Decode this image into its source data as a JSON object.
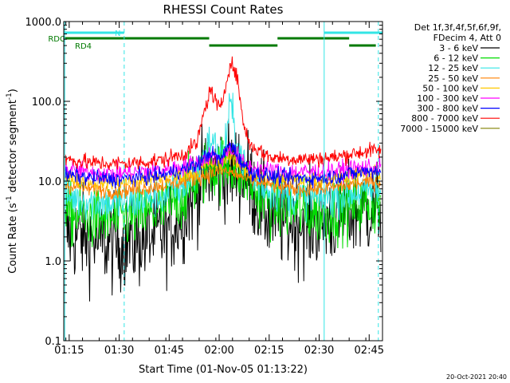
{
  "chart_data": {
    "type": "line",
    "title": "RHESSI Count Rates",
    "xlabel": "Start Time (01-Nov-05 01:13:22)",
    "ylabel_main": "Count Rate (s",
    "ylabel_sup": "-1",
    "ylabel_tail": " detector segment",
    "ylabel_sup2": "-1",
    "ylabel_close": ")",
    "y_scale": "log",
    "ylim": [
      0.1,
      1000
    ],
    "xlim": [
      "01:13:22",
      "02:49:00"
    ],
    "x_ticks": [
      "01:15",
      "01:30",
      "01:45",
      "02:00",
      "02:15",
      "02:30",
      "02:45"
    ],
    "y_ticks": [
      {
        "v": 0.1,
        "label": "0.1"
      },
      {
        "v": 1,
        "label": "1.0"
      },
      {
        "v": 10,
        "label": "10.0"
      },
      {
        "v": 100,
        "label": "100.0"
      },
      {
        "v": 1000,
        "label": "1000.0"
      }
    ],
    "legend_header": [
      "Det 1f,3f,4f,5f,6f,9f,",
      "FDecim 4, Att 0"
    ],
    "footer_date": "20-Oct-2021 20:40",
    "flags": [
      {
        "label": "N",
        "color": "#33e5e5",
        "segments": [
          [
            "01:13:22",
            "01:31:30"
          ],
          [
            "02:31:30",
            "02:49:00"
          ]
        ]
      },
      {
        "label": "RDC",
        "color": "#007a00",
        "segments": [
          [
            "01:13:22",
            "01:57:00"
          ],
          [
            "02:17:30",
            "02:39:00"
          ]
        ]
      },
      {
        "label": "RD4",
        "color": "#007a00",
        "segments": [
          [
            "01:57:00",
            "02:17:30"
          ],
          [
            "02:39:00",
            "02:47:00"
          ]
        ]
      }
    ],
    "vlines_solid": [
      "01:13:40",
      "02:31:30"
    ],
    "vlines_dashed": [
      "01:31:30",
      "02:47:45"
    ],
    "series": [
      {
        "name": "3 - 6 keV",
        "color": "#000000",
        "base": [
          [
            0,
            2.2
          ],
          [
            6,
            2.0
          ],
          [
            15,
            1.6
          ],
          [
            22,
            1.8
          ],
          [
            30,
            2.2
          ],
          [
            36,
            4.0
          ],
          [
            40,
            8.0
          ],
          [
            44,
            13.0
          ],
          [
            48,
            14.0
          ],
          [
            52,
            13.5
          ],
          [
            55,
            12.0
          ],
          [
            58,
            6.0
          ],
          [
            62,
            3.5
          ],
          [
            68,
            3.0
          ],
          [
            76,
            3.0
          ],
          [
            82,
            3.5
          ],
          [
            86,
            4.0
          ],
          [
            92,
            4.5
          ]
        ],
        "noise": 0.3
      },
      {
        "name": "6 - 12 keV",
        "color": "#00dd00",
        "base": [
          [
            0,
            4.0
          ],
          [
            6,
            3.5
          ],
          [
            15,
            3.3
          ],
          [
            22,
            3.6
          ],
          [
            30,
            4.4
          ],
          [
            36,
            6.5
          ],
          [
            40,
            10.0
          ],
          [
            44,
            16.0
          ],
          [
            46,
            13.5
          ],
          [
            48,
            15.0
          ],
          [
            50,
            17.0
          ],
          [
            52,
            14.0
          ],
          [
            55,
            11.0
          ],
          [
            58,
            7.0
          ],
          [
            62,
            5.0
          ],
          [
            68,
            4.4
          ],
          [
            76,
            4.0
          ],
          [
            82,
            4.3
          ],
          [
            86,
            4.8
          ],
          [
            92,
            5.2
          ]
        ],
        "noise": 0.2
      },
      {
        "name": "12 - 25 keV",
        "color": "#33e5e5",
        "base": [
          [
            0,
            6.5
          ],
          [
            8,
            5.5
          ],
          [
            15,
            5.2
          ],
          [
            22,
            5.5
          ],
          [
            30,
            6.5
          ],
          [
            36,
            9.0
          ],
          [
            40,
            12.0
          ],
          [
            44,
            33.0
          ],
          [
            46,
            25.0
          ],
          [
            48,
            21.0
          ],
          [
            50,
            95.0
          ],
          [
            52,
            30.0
          ],
          [
            55,
            12.0
          ],
          [
            58,
            9.5
          ],
          [
            62,
            7.5
          ],
          [
            68,
            6.5
          ],
          [
            76,
            6.0
          ],
          [
            82,
            6.5
          ],
          [
            86,
            7.0
          ],
          [
            92,
            7.5
          ]
        ],
        "noise": 0.12
      },
      {
        "name": "25 - 50 keV",
        "color": "#ff8000",
        "base": [
          [
            0,
            9.0
          ],
          [
            8,
            8.0
          ],
          [
            15,
            7.5
          ],
          [
            22,
            8.0
          ],
          [
            30,
            9.0
          ],
          [
            36,
            10.0
          ],
          [
            40,
            11.0
          ],
          [
            44,
            12.5
          ],
          [
            48,
            13.5
          ],
          [
            51,
            12.5
          ],
          [
            54,
            11.0
          ],
          [
            58,
            10.0
          ],
          [
            62,
            9.0
          ],
          [
            68,
            8.0
          ],
          [
            76,
            8.0
          ],
          [
            82,
            8.5
          ],
          [
            86,
            9.0
          ],
          [
            92,
            10.0
          ]
        ],
        "noise": 0.05
      },
      {
        "name": "50 - 100 keV",
        "color": "#ffc800",
        "base": [
          [
            0,
            11.0
          ],
          [
            8,
            10.0
          ],
          [
            15,
            9.5
          ],
          [
            22,
            10.0
          ],
          [
            30,
            11.0
          ],
          [
            36,
            12.0
          ],
          [
            40,
            13.0
          ],
          [
            44,
            17.0
          ],
          [
            47,
            15.0
          ],
          [
            50,
            22.0
          ],
          [
            53,
            15.0
          ],
          [
            56,
            12.5
          ],
          [
            62,
            11.0
          ],
          [
            68,
            10.5
          ],
          [
            76,
            10.5
          ],
          [
            82,
            11.0
          ],
          [
            86,
            12.0
          ],
          [
            92,
            12.5
          ]
        ],
        "noise": 0.05
      },
      {
        "name": "100 - 300 keV",
        "color": "#ff00ff",
        "base": [
          [
            0,
            14.0
          ],
          [
            8,
            13.0
          ],
          [
            15,
            12.5
          ],
          [
            22,
            13.0
          ],
          [
            30,
            14.0
          ],
          [
            36,
            15.5
          ],
          [
            40,
            17.0
          ],
          [
            44,
            21.0
          ],
          [
            47,
            18.0
          ],
          [
            50,
            27.0
          ],
          [
            53,
            18.0
          ],
          [
            56,
            15.0
          ],
          [
            62,
            13.5
          ],
          [
            68,
            13.0
          ],
          [
            76,
            13.0
          ],
          [
            82,
            13.5
          ],
          [
            86,
            14.5
          ],
          [
            92,
            15.0
          ]
        ],
        "noise": 0.06
      },
      {
        "name": "300 - 800 keV",
        "color": "#0000ff",
        "base": [
          [
            0,
            12.0
          ],
          [
            8,
            11.0
          ],
          [
            15,
            10.5
          ],
          [
            22,
            11.0
          ],
          [
            30,
            12.0
          ],
          [
            36,
            14.0
          ],
          [
            40,
            16.0
          ],
          [
            44,
            23.0
          ],
          [
            47,
            18.0
          ],
          [
            50,
            30.0
          ],
          [
            53,
            18.0
          ],
          [
            56,
            13.0
          ],
          [
            62,
            11.5
          ],
          [
            68,
            11.0
          ],
          [
            76,
            11.0
          ],
          [
            82,
            11.5
          ],
          [
            86,
            12.5
          ],
          [
            92,
            13.5
          ]
        ],
        "noise": 0.05
      },
      {
        "name": "800 - 7000 keV",
        "color": "#ff0000",
        "base": [
          [
            0,
            19.0
          ],
          [
            8,
            17.0
          ],
          [
            15,
            16.5
          ],
          [
            22,
            17.0
          ],
          [
            30,
            18.5
          ],
          [
            36,
            22.0
          ],
          [
            40,
            30.0
          ],
          [
            42,
            70.0
          ],
          [
            44,
            140.0
          ],
          [
            47,
            75.0
          ],
          [
            50,
            320.0
          ],
          [
            52,
            200.0
          ],
          [
            54,
            50.0
          ],
          [
            56,
            28.0
          ],
          [
            62,
            20.0
          ],
          [
            68,
            19.0
          ],
          [
            76,
            19.0
          ],
          [
            82,
            20.0
          ],
          [
            86,
            22.0
          ],
          [
            92,
            24.0
          ]
        ],
        "noise": 0.05
      },
      {
        "name": "7000 - 15000 keV",
        "color": "#808000",
        "base": [],
        "noise": 0
      }
    ]
  }
}
